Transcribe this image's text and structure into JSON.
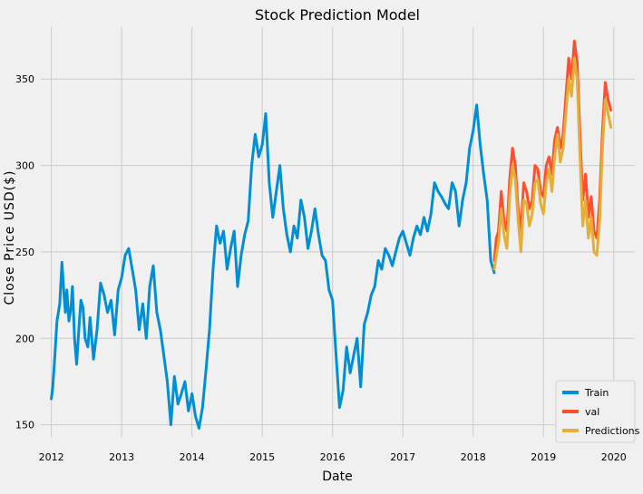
{
  "chart_data": {
    "type": "line",
    "title": "Stock Prediction Model",
    "xlabel": "Date",
    "ylabel": "Close Price USD($)",
    "xlim": [
      2011.85,
      2020.3
    ],
    "ylim": [
      143,
      380
    ],
    "x_ticks": [
      2012,
      2013,
      2014,
      2015,
      2016,
      2017,
      2018,
      2019,
      2020
    ],
    "y_ticks": [
      150,
      200,
      250,
      300,
      350
    ],
    "grid": true,
    "legend": {
      "placement": "bottom-right"
    },
    "colors": {
      "background": "#f0f0f0",
      "grid": "#cbcbcb",
      "train": "#008fd5",
      "val": "#fc4f30",
      "predictions": "#e5ae38"
    },
    "series": [
      {
        "name": "Train",
        "x": [
          2012.0,
          2012.02,
          2012.05,
          2012.08,
          2012.12,
          2012.15,
          2012.18,
          2012.2,
          2012.22,
          2012.25,
          2012.28,
          2012.3,
          2012.33,
          2012.36,
          2012.39,
          2012.42,
          2012.45,
          2012.48,
          2012.52,
          2012.55,
          2012.6,
          2012.65,
          2012.7,
          2012.75,
          2012.8,
          2012.85,
          2012.9,
          2012.95,
          2013.0,
          2013.05,
          2013.1,
          2013.15,
          2013.2,
          2013.25,
          2013.3,
          2013.35,
          2013.4,
          2013.45,
          2013.5,
          2013.55,
          2013.6,
          2013.65,
          2013.7,
          2013.75,
          2013.8,
          2013.85,
          2013.9,
          2013.95,
          2014.0,
          2014.05,
          2014.1,
          2014.15,
          2014.2,
          2014.25,
          2014.3,
          2014.35,
          2014.4,
          2014.45,
          2014.5,
          2014.55,
          2014.6,
          2014.65,
          2014.7,
          2014.75,
          2014.8,
          2014.85,
          2014.9,
          2014.95,
          2015.0,
          2015.05,
          2015.1,
          2015.15,
          2015.2,
          2015.25,
          2015.3,
          2015.35,
          2015.4,
          2015.45,
          2015.5,
          2015.55,
          2015.6,
          2015.65,
          2015.7,
          2015.75,
          2015.8,
          2015.85,
          2015.9,
          2015.95,
          2016.0,
          2016.05,
          2016.1,
          2016.15,
          2016.2,
          2016.25,
          2016.3,
          2016.35,
          2016.4,
          2016.45,
          2016.5,
          2016.55,
          2016.6,
          2016.65,
          2016.7,
          2016.75,
          2016.8,
          2016.85,
          2016.9,
          2016.95,
          2017.0,
          2017.05,
          2017.1,
          2017.15,
          2017.2,
          2017.25,
          2017.3,
          2017.35,
          2017.4,
          2017.45,
          2017.5,
          2017.55,
          2017.6,
          2017.65,
          2017.7,
          2017.75,
          2017.8,
          2017.85,
          2017.9,
          2017.95,
          2018.0,
          2018.05,
          2018.1,
          2018.15,
          2018.2,
          2018.25,
          2018.3
        ],
        "values": [
          165,
          172,
          190,
          210,
          220,
          244,
          225,
          215,
          228,
          210,
          218,
          230,
          200,
          185,
          205,
          222,
          218,
          200,
          195,
          212,
          188,
          205,
          232,
          225,
          215,
          222,
          202,
          228,
          235,
          248,
          252,
          240,
          228,
          205,
          220,
          200,
          230,
          242,
          215,
          205,
          190,
          175,
          150,
          178,
          162,
          168,
          175,
          158,
          168,
          155,
          148,
          160,
          182,
          205,
          240,
          265,
          255,
          262,
          240,
          252,
          262,
          230,
          248,
          260,
          268,
          300,
          318,
          305,
          312,
          330,
          290,
          270,
          285,
          300,
          275,
          260,
          250,
          265,
          258,
          280,
          270,
          252,
          262,
          275,
          260,
          248,
          245,
          228,
          222,
          190,
          160,
          170,
          195,
          180,
          190,
          200,
          172,
          208,
          215,
          225,
          230,
          245,
          240,
          252,
          248,
          242,
          250,
          258,
          262,
          255,
          248,
          258,
          265,
          260,
          270,
          262,
          272,
          290,
          285,
          282,
          278,
          275,
          290,
          285,
          265,
          280,
          290,
          310,
          320,
          335,
          312,
          295,
          280,
          245,
          238
        ]
      },
      {
        "name": "val",
        "x": [
          2018.3,
          2018.33,
          2018.36,
          2018.4,
          2018.44,
          2018.48,
          2018.52,
          2018.56,
          2018.6,
          2018.64,
          2018.68,
          2018.72,
          2018.76,
          2018.8,
          2018.84,
          2018.88,
          2018.92,
          2018.96,
          2019.0,
          2019.04,
          2019.08,
          2019.12,
          2019.16,
          2019.2,
          2019.24,
          2019.28,
          2019.32,
          2019.36,
          2019.4,
          2019.44,
          2019.48,
          2019.52,
          2019.56,
          2019.6,
          2019.64,
          2019.68,
          2019.72,
          2019.76,
          2019.8,
          2019.84,
          2019.88,
          2019.92,
          2019.96
        ],
        "values": [
          245,
          258,
          262,
          285,
          268,
          262,
          292,
          310,
          300,
          275,
          262,
          290,
          285,
          275,
          280,
          300,
          298,
          285,
          282,
          300,
          305,
          295,
          315,
          322,
          310,
          318,
          340,
          362,
          350,
          372,
          360,
          318,
          280,
          295,
          270,
          282,
          262,
          258,
          280,
          320,
          348,
          338,
          332
        ]
      },
      {
        "name": "Predictions",
        "x": [
          2018.3,
          2018.33,
          2018.36,
          2018.4,
          2018.44,
          2018.48,
          2018.52,
          2018.56,
          2018.6,
          2018.64,
          2018.68,
          2018.72,
          2018.76,
          2018.8,
          2018.84,
          2018.88,
          2018.92,
          2018.96,
          2019.0,
          2019.04,
          2019.08,
          2019.12,
          2019.16,
          2019.2,
          2019.24,
          2019.28,
          2019.32,
          2019.36,
          2019.4,
          2019.44,
          2019.48,
          2019.52,
          2019.56,
          2019.6,
          2019.64,
          2019.68,
          2019.72,
          2019.76,
          2019.8,
          2019.84,
          2019.88,
          2019.92,
          2019.96
        ],
        "values": [
          240,
          248,
          255,
          275,
          260,
          252,
          282,
          300,
          292,
          268,
          250,
          280,
          278,
          265,
          272,
          290,
          292,
          278,
          272,
          290,
          298,
          285,
          305,
          318,
          302,
          310,
          330,
          350,
          340,
          362,
          350,
          305,
          265,
          280,
          258,
          270,
          250,
          248,
          268,
          310,
          338,
          330,
          322
        ]
      }
    ]
  }
}
